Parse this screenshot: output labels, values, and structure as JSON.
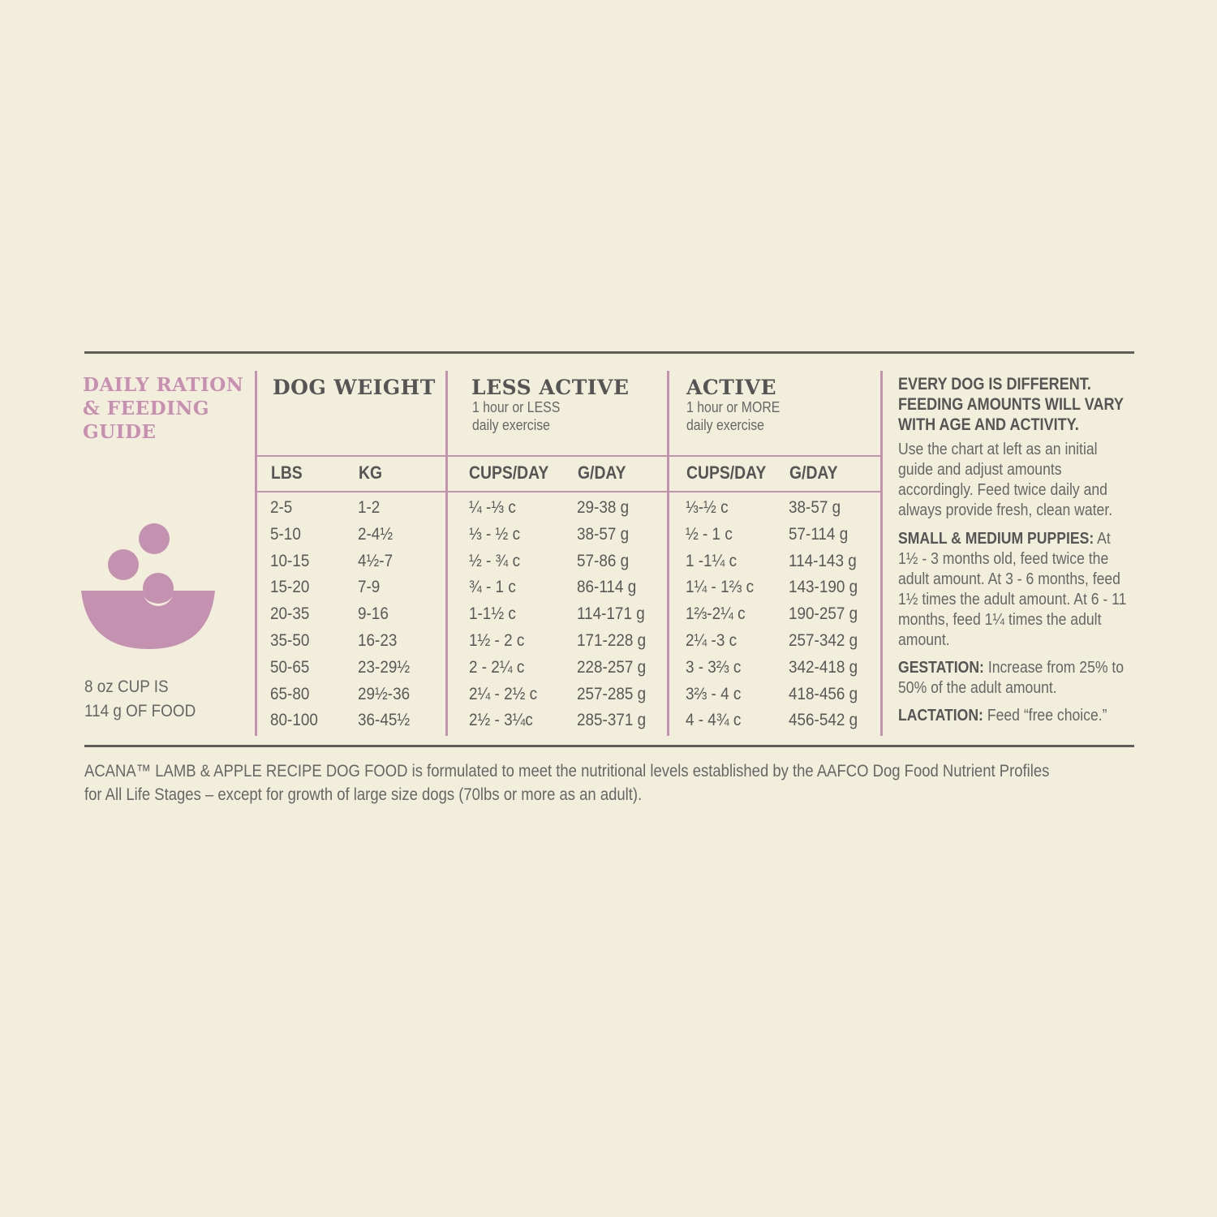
{
  "title": "DAILY RATION & FEEDING GUIDE",
  "title_lines": [
    "DAILY RATION",
    "& FEEDING",
    "GUIDE"
  ],
  "icon": "food-bowl-icon",
  "cup_note_lines": [
    "8 oz CUP IS",
    "114 g OF FOOD"
  ],
  "columns": {
    "dog_weight": {
      "title": "DOG WEIGHT",
      "subheads": [
        "LBS",
        "KG"
      ]
    },
    "less_active": {
      "title": "LESS ACTIVE",
      "desc_lines": [
        "1 hour or LESS",
        "daily exercise"
      ],
      "subheads": [
        "CUPS/DAY",
        "G/DAY"
      ]
    },
    "active": {
      "title": "ACTIVE",
      "desc_lines": [
        "1 hour or MORE",
        "daily exercise"
      ],
      "subheads": [
        "CUPS/DAY",
        "G/DAY"
      ]
    }
  },
  "rows": [
    [
      "2-5",
      "1-2",
      "¼ -⅓ c",
      "29-38 g",
      "⅓-½ c",
      "38-57 g"
    ],
    [
      "5-10",
      "2-4½",
      "⅓ - ½ c",
      "38-57 g",
      "½ - 1 c",
      "57-114 g"
    ],
    [
      "10-15",
      "4½-7",
      "½ - ¾ c",
      "57-86 g",
      "1 -1¼ c",
      "114-143 g"
    ],
    [
      "15-20",
      "7-9",
      "¾ - 1 c",
      "86-114 g",
      "1¼ - 1⅔ c",
      "143-190 g"
    ],
    [
      "20-35",
      "9-16",
      "1-1½ c",
      "114-171 g",
      "1⅔-2¼ c",
      "190-257 g"
    ],
    [
      "35-50",
      "16-23",
      "1½ - 2 c",
      "171-228 g",
      "2¼ -3 c",
      "257-342 g"
    ],
    [
      "50-65",
      "23-29½",
      "2 - 2¼ c",
      "228-257 g",
      "3 - 3⅔ c",
      "342-418 g"
    ],
    [
      "65-80",
      "29½-36",
      "2¼ - 2½ c",
      "257-285 g",
      "3⅔ - 4 c",
      "418-456 g"
    ],
    [
      "80-100",
      "36-45½",
      "2½ - 3¼c",
      "285-371 g",
      "4 - 4¾ c",
      "456-542 g"
    ]
  ],
  "notes": {
    "heading_lines": [
      "EVERY DOG IS DIFFERENT.",
      "FEEDING AMOUNTS WILL VARY",
      "WITH AGE AND ACTIVITY."
    ],
    "intro": "Use the chart at left as an initial guide and adjust amounts accordingly. Feed twice daily and always provide fresh, clean water.",
    "puppies_label": "SMALL & MEDIUM PUPPIES:",
    "puppies_text": "At 1½ - 3 months old, feed twice the adult amount. At 3 - 6 months, feed 1½ times the adult amount. At 6 - 11 months, feed 1¼ times the adult amount.",
    "gestation_label": "GESTATION:",
    "gestation_text": " Increase from 25% to 50% of the adult amount.",
    "lactation_label": "LACTATION:",
    "lactation_text": " Feed “free choice.”"
  },
  "footer_lines": [
    "ACANA™ LAMB & APPLE RECIPE DOG FOOD is formulated to meet the nutritional levels established by the AAFCO Dog Food Nutrient Profiles",
    "for All Life Stages – except for growth of large size dogs (70lbs or more as an adult)."
  ],
  "colors": {
    "background": "#f1eedb",
    "accent_pink": "#c591b1",
    "text": "#5a5858",
    "rule": "#5f5c5c"
  }
}
